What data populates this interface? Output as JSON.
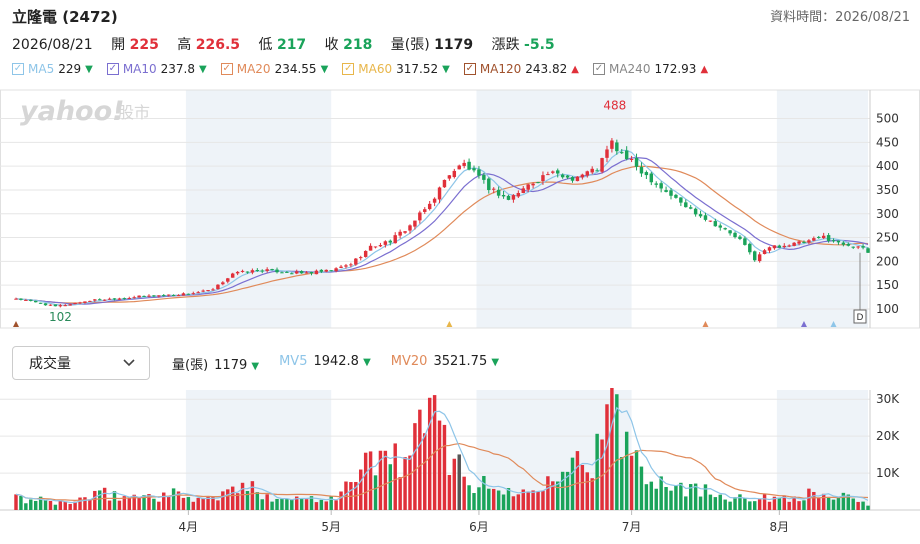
{
  "header": {
    "stock_name": "立隆電 (2472)",
    "as_of": "資料時間：2026/08/21"
  },
  "quote": {
    "date": "2026/08/21",
    "open_label": "開",
    "open": "225",
    "high_label": "高",
    "high": "226.5",
    "low_label": "低",
    "low": "217",
    "close_label": "收",
    "close": "218",
    "volume_label": "量(張)",
    "volume": "1179",
    "change_label": "漲跌",
    "change": "-5.5"
  },
  "ma_legend": [
    {
      "label": "MA5",
      "value": "229",
      "trend": "down",
      "color": "#8ec5e8"
    },
    {
      "label": "MA10",
      "value": "237.8",
      "trend": "down",
      "color": "#7b6fd0"
    },
    {
      "label": "MA20",
      "value": "234.55",
      "trend": "down",
      "color": "#e08a5a"
    },
    {
      "label": "MA60",
      "value": "317.52",
      "trend": "down",
      "color": "#e8b64a"
    },
    {
      "label": "MA120",
      "value": "243.82",
      "trend": "up",
      "color": "#a0522d"
    },
    {
      "label": "MA240",
      "value": "172.93",
      "trend": "up",
      "color": "#888888"
    }
  ],
  "watermark": {
    "brand": "yahoo!",
    "section": "股市"
  },
  "volume_panel": {
    "selector_label": "成交量",
    "items": [
      {
        "label": "量(張)",
        "value": "1179",
        "trend": "down",
        "color": "#222222"
      },
      {
        "label": "MV5",
        "value": "1942.8",
        "trend": "down",
        "color": "#8ec5e8"
      },
      {
        "label": "MV20",
        "value": "3521.75",
        "trend": "down",
        "color": "#e08a5a"
      }
    ]
  },
  "colors": {
    "up": "#e0303a",
    "down": "#1aa35a",
    "band": "#eef3f8",
    "grid": "#e6e6e6"
  },
  "chart_data": {
    "type": "candlestick",
    "price_axis": {
      "ticks": [
        100,
        150,
        200,
        250,
        300,
        350,
        400,
        450,
        500
      ],
      "range": [
        60,
        560
      ]
    },
    "volume_axis": {
      "ticks": [
        "10K",
        "20K",
        "30K"
      ],
      "tick_values": [
        10000,
        20000,
        30000
      ],
      "range": [
        0,
        32500
      ]
    },
    "month_labels": [
      {
        "label": "4月",
        "index": 35
      },
      {
        "label": "5月",
        "index": 64
      },
      {
        "label": "6月",
        "index": 94
      },
      {
        "label": "7月",
        "index": 125
      },
      {
        "label": "8月",
        "index": 155
      }
    ],
    "annotations": {
      "max_label": "488",
      "max_index": 122,
      "min_label": "102",
      "min_index": 8,
      "end_marker": "D"
    },
    "close_anchors": [
      [
        0,
        122
      ],
      [
        8,
        105
      ],
      [
        15,
        118
      ],
      [
        25,
        126
      ],
      [
        35,
        132
      ],
      [
        40,
        140
      ],
      [
        44,
        175
      ],
      [
        50,
        182
      ],
      [
        58,
        175
      ],
      [
        64,
        180
      ],
      [
        68,
        195
      ],
      [
        72,
        230
      ],
      [
        76,
        243
      ],
      [
        80,
        275
      ],
      [
        84,
        320
      ],
      [
        88,
        385
      ],
      [
        91,
        405
      ],
      [
        96,
        355
      ],
      [
        100,
        330
      ],
      [
        104,
        360
      ],
      [
        108,
        385
      ],
      [
        113,
        375
      ],
      [
        118,
        395
      ],
      [
        121,
        450
      ],
      [
        122,
        435
      ],
      [
        127,
        390
      ],
      [
        131,
        355
      ],
      [
        136,
        315
      ],
      [
        141,
        285
      ],
      [
        147,
        245
      ],
      [
        150,
        205
      ],
      [
        153,
        230
      ],
      [
        157,
        235
      ],
      [
        161,
        242
      ],
      [
        164,
        252
      ],
      [
        167,
        238
      ],
      [
        171,
        232
      ],
      [
        173,
        218
      ]
    ],
    "volume_anchors": [
      [
        0,
        3000
      ],
      [
        10,
        2000
      ],
      [
        18,
        4200
      ],
      [
        23,
        3600
      ],
      [
        32,
        4200
      ],
      [
        40,
        3000
      ],
      [
        46,
        6300
      ],
      [
        50,
        4500
      ],
      [
        56,
        3000
      ],
      [
        64,
        3600
      ],
      [
        70,
        9000
      ],
      [
        72,
        14500
      ],
      [
        76,
        13000
      ],
      [
        82,
        20000
      ],
      [
        84,
        24500
      ],
      [
        87,
        19500
      ],
      [
        90,
        12500
      ],
      [
        93,
        7000
      ],
      [
        98,
        5500
      ],
      [
        104,
        4500
      ],
      [
        108,
        11000
      ],
      [
        111,
        14500
      ],
      [
        114,
        12500
      ],
      [
        118,
        15500
      ],
      [
        121,
        27500
      ],
      [
        123,
        21000
      ],
      [
        127,
        12000
      ],
      [
        132,
        8000
      ],
      [
        138,
        5600
      ],
      [
        143,
        4300
      ],
      [
        148,
        3800
      ],
      [
        152,
        3000
      ],
      [
        156,
        3600
      ],
      [
        160,
        4200
      ],
      [
        164,
        4000
      ],
      [
        168,
        3500
      ],
      [
        173,
        1179
      ]
    ]
  }
}
